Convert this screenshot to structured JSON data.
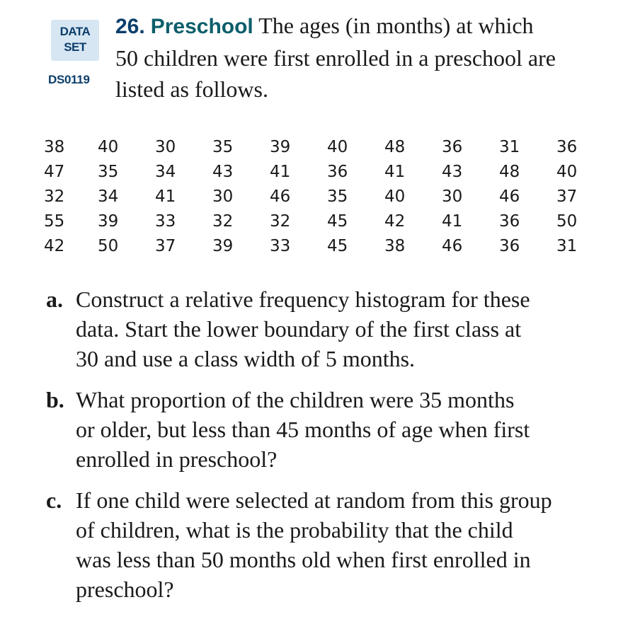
{
  "badge": {
    "line1": "DATA",
    "line2": "SET",
    "code": "DS0119"
  },
  "exercise": {
    "number": "26.",
    "topic": "Preschool",
    "lines": [
      "The ages (in months) at which",
      "50 children were first enrolled in a preschool are",
      "listed as follows."
    ]
  },
  "data_rows": [
    [
      "38",
      "40",
      "30",
      "35",
      "39",
      "40",
      "48",
      "36",
      "31",
      "36"
    ],
    [
      "47",
      "35",
      "34",
      "43",
      "41",
      "36",
      "41",
      "43",
      "48",
      "40"
    ],
    [
      "32",
      "34",
      "41",
      "30",
      "46",
      "35",
      "40",
      "30",
      "46",
      "37"
    ],
    [
      "55",
      "39",
      "33",
      "32",
      "32",
      "45",
      "42",
      "41",
      "36",
      "50"
    ],
    [
      "42",
      "50",
      "37",
      "39",
      "33",
      "45",
      "38",
      "46",
      "36",
      "31"
    ]
  ],
  "parts": [
    {
      "label": "a.",
      "lines": [
        "Construct a relative frequency histogram for these",
        "data. Start the lower boundary of the first class at",
        "30 and use a class width of 5 months."
      ]
    },
    {
      "label": "b.",
      "lines": [
        "What proportion of the children were 35 months",
        "or older, but less than 45 months of age when first",
        "enrolled in preschool?"
      ]
    },
    {
      "label": "c.",
      "lines": [
        "If one child were selected at random from this group",
        "of children, what is the probability that the child",
        "was less than 50 months old when first enrolled in",
        "preschool?"
      ]
    }
  ]
}
